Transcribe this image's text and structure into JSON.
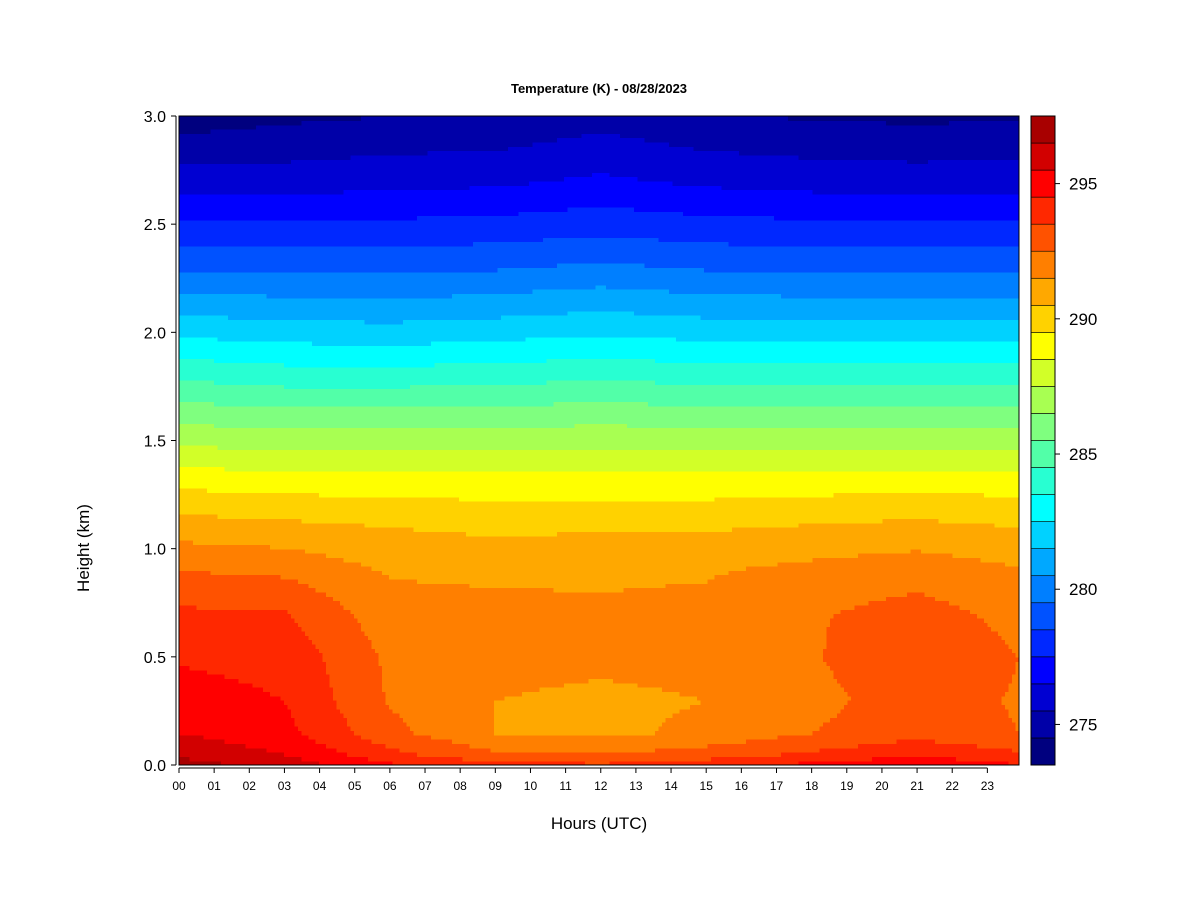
{
  "chart_data": {
    "type": "heatmap",
    "title": "Temperature (K) - 08/28/2023",
    "xlabel": "Hours (UTC)",
    "ylabel": "Height (km)",
    "x_ticks": [
      "00",
      "01",
      "02",
      "03",
      "04",
      "05",
      "06",
      "07",
      "08",
      "09",
      "10",
      "11",
      "12",
      "13",
      "14",
      "15",
      "16",
      "17",
      "18",
      "19",
      "20",
      "21",
      "22",
      "23"
    ],
    "y_ticks": [
      "0.0",
      "0.5",
      "1.0",
      "1.5",
      "2.0",
      "2.5",
      "3.0"
    ],
    "xlim": [
      0,
      23.9
    ],
    "ylim": [
      0,
      3.0
    ],
    "colorbar": {
      "label_values": [
        275,
        280,
        285,
        290,
        295
      ],
      "labels": [
        "275",
        "280",
        "285",
        "290",
        "295"
      ],
      "range": [
        274,
        298
      ],
      "levels": 24,
      "colors": [
        "#00007f",
        "#0000a8",
        "#0000d2",
        "#0000ff",
        "#0028ff",
        "#0052ff",
        "#007fff",
        "#00a8ff",
        "#00d2ff",
        "#00ffff",
        "#28ffd2",
        "#52ffa8",
        "#7fff7f",
        "#a8ff52",
        "#d2ff28",
        "#ffff00",
        "#ffd200",
        "#ffa800",
        "#ff7f00",
        "#ff5200",
        "#ff2800",
        "#ff0000",
        "#d20000",
        "#a80000",
        "#7f0000"
      ]
    },
    "profile_heights_km": [
      0.0,
      0.05,
      0.15,
      0.3,
      0.5,
      0.7,
      0.9,
      1.1,
      1.3,
      1.5,
      1.7,
      1.9,
      2.1,
      2.3,
      2.5,
      2.7,
      3.0
    ],
    "profiles": [
      {
        "hour": 0,
        "temps_K": [
          297.5,
          296.8,
          296.0,
          295.4,
          294.9,
          294.2,
          293.0,
          291.5,
          289.8,
          287.8,
          285.8,
          283.8,
          281.8,
          279.9,
          278.2,
          276.6,
          274.4
        ]
      },
      {
        "hour": 3,
        "temps_K": [
          296.6,
          296.0,
          295.3,
          295.0,
          294.7,
          294.1,
          292.8,
          291.3,
          289.6,
          287.5,
          285.5,
          283.5,
          281.6,
          279.8,
          278.1,
          276.5,
          274.8
        ]
      },
      {
        "hour": 6,
        "temps_K": [
          295.2,
          294.3,
          293.3,
          292.9,
          292.8,
          292.4,
          291.9,
          291.0,
          289.6,
          287.6,
          285.5,
          283.4,
          281.5,
          279.8,
          278.2,
          276.7,
          275.0
        ]
      },
      {
        "hour": 9,
        "temps_K": [
          294.5,
          293.2,
          292.0,
          292.0,
          292.3,
          292.3,
          291.8,
          290.8,
          289.5,
          287.6,
          285.6,
          283.6,
          281.7,
          279.9,
          278.3,
          276.8,
          275.1
        ]
      },
      {
        "hour": 12,
        "temps_K": [
          294.2,
          293.0,
          291.8,
          291.8,
          292.2,
          292.2,
          291.8,
          290.9,
          289.5,
          287.7,
          285.8,
          283.8,
          282.0,
          280.2,
          278.6,
          277.2,
          275.6
        ]
      },
      {
        "hour": 15,
        "temps_K": [
          294.7,
          293.5,
          292.2,
          292.0,
          292.3,
          292.3,
          291.9,
          290.9,
          289.5,
          287.6,
          285.6,
          283.6,
          281.7,
          279.9,
          278.3,
          276.8,
          275.1
        ]
      },
      {
        "hour": 18,
        "temps_K": [
          295.3,
          294.2,
          293.0,
          292.7,
          292.9,
          292.9,
          292.3,
          291.1,
          289.6,
          287.6,
          285.6,
          283.6,
          281.6,
          279.8,
          278.2,
          276.6,
          274.9
        ]
      },
      {
        "hour": 21,
        "temps_K": [
          295.8,
          294.9,
          293.6,
          293.5,
          293.8,
          293.4,
          292.6,
          291.3,
          289.7,
          287.7,
          285.6,
          283.6,
          281.6,
          279.8,
          278.1,
          276.5,
          274.8
        ]
      },
      {
        "hour": 23.9,
        "temps_K": [
          295.1,
          294.2,
          293.0,
          292.9,
          293.0,
          292.7,
          292.1,
          291.0,
          289.6,
          287.6,
          285.6,
          283.6,
          281.6,
          279.8,
          278.1,
          276.6,
          274.9
        ]
      }
    ]
  }
}
